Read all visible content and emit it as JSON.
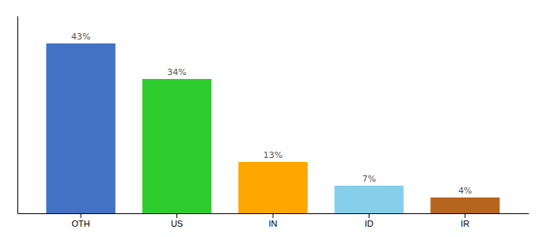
{
  "chart_data": {
    "type": "bar",
    "categories": [
      "OTH",
      "US",
      "IN",
      "ID",
      "IR"
    ],
    "values": [
      43,
      34,
      13,
      7,
      4
    ],
    "value_labels": [
      "43%",
      "34%",
      "13%",
      "7%",
      "4%"
    ],
    "colors": [
      "#4472c4",
      "#2ecc2e",
      "#ffa500",
      "#87ceeb",
      "#b5651d"
    ],
    "ylim": [
      0,
      50
    ],
    "data_labels": true,
    "tick_labels": "x",
    "grid": false
  }
}
